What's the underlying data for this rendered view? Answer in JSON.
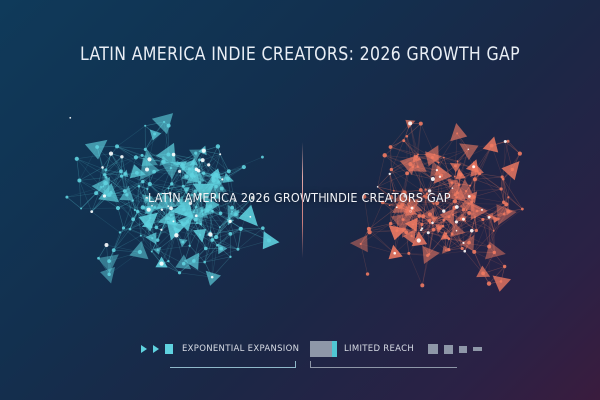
{
  "title": "LATIN AMERICA INDIE CREATORS: 2026 GROWTH GAP",
  "clusters": {
    "left": {
      "label": "LATIN AMERICA 2026 GROWTH",
      "color": "#5fd2df"
    },
    "right": {
      "label": "INDIE CREATORS GAP",
      "color": "#f07a62"
    }
  },
  "legend": {
    "left": {
      "label": "EXPONENTIAL EXPANSION",
      "color": "#5fd2df"
    },
    "right": {
      "label": "LIMITED REACH",
      "color": "#8e97a8"
    }
  }
}
